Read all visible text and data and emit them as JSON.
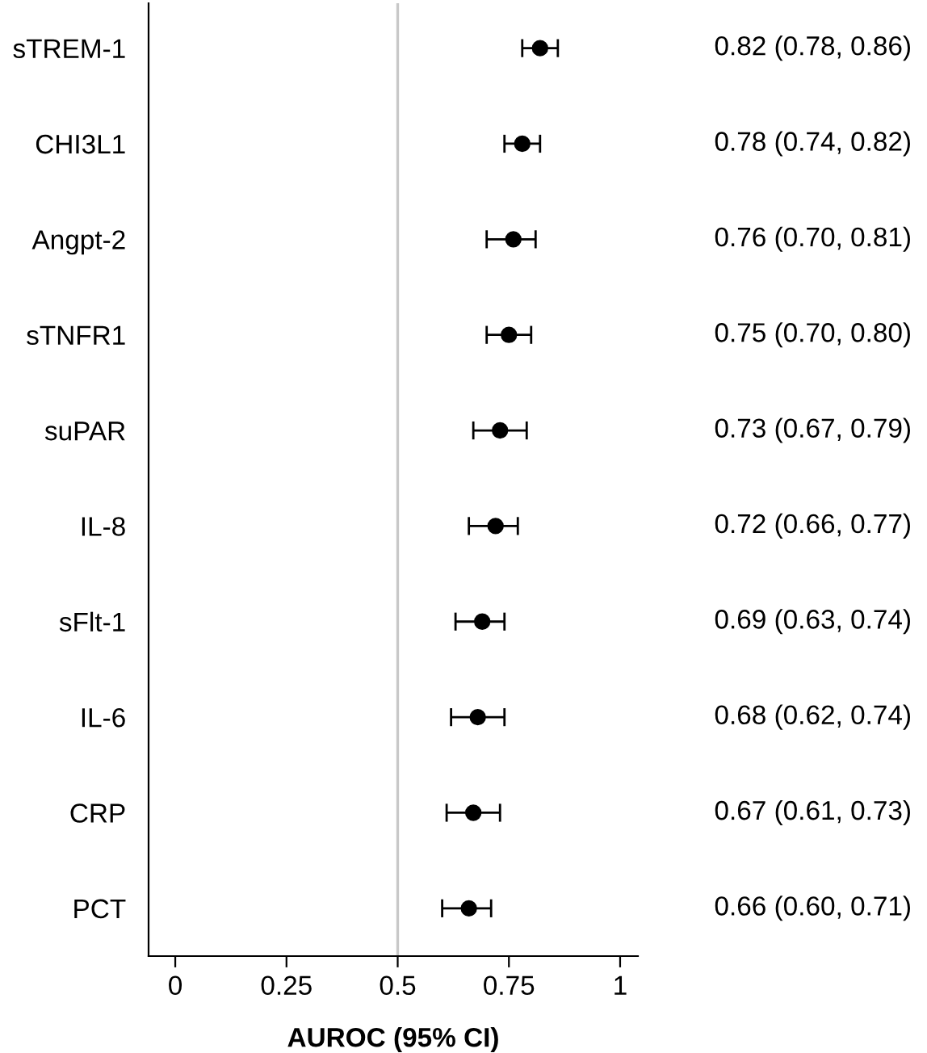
{
  "chart_data": {
    "type": "scatter",
    "orientation": "horizontal",
    "xlabel": "AUROC (95% CI)",
    "categories": [
      "sTREM-1",
      "CHI3L1",
      "Angpt-2",
      "sTNFR1",
      "suPAR",
      "IL-8",
      "sFlt-1",
      "IL-6",
      "CRP",
      "PCT"
    ],
    "values": [
      0.82,
      0.78,
      0.76,
      0.75,
      0.73,
      0.72,
      0.69,
      0.68,
      0.67,
      0.66
    ],
    "errors": [
      [
        0.78,
        0.86
      ],
      [
        0.74,
        0.82
      ],
      [
        0.7,
        0.81
      ],
      [
        0.7,
        0.8
      ],
      [
        0.67,
        0.79
      ],
      [
        0.66,
        0.77
      ],
      [
        0.63,
        0.74
      ],
      [
        0.62,
        0.74
      ],
      [
        0.61,
        0.73
      ],
      [
        0.6,
        0.71
      ]
    ],
    "value_labels": [
      "0.82 (0.78, 0.86)",
      "0.78 (0.74, 0.82)",
      "0.76 (0.70, 0.81)",
      "0.75 (0.70, 0.80)",
      "0.73 (0.67, 0.79)",
      "0.72 (0.66, 0.77)",
      "0.69 (0.63, 0.74)",
      "0.68 (0.62, 0.74)",
      "0.67 (0.61, 0.73)",
      "0.66 (0.60, 0.71)"
    ],
    "color": "#000000",
    "marker": "circle",
    "xlim": [
      -0.06,
      1.04
    ],
    "xticks": [
      0,
      {
        "value": 0.25,
        "label": "0.25"
      },
      0.5,
      {
        "value": 0.75,
        "label": "0.75"
      },
      1
    ],
    "ref_lines": [
      {
        "axis": "x",
        "value": 0.5,
        "color": "#c8c8c8"
      }
    ],
    "grid": false
  }
}
